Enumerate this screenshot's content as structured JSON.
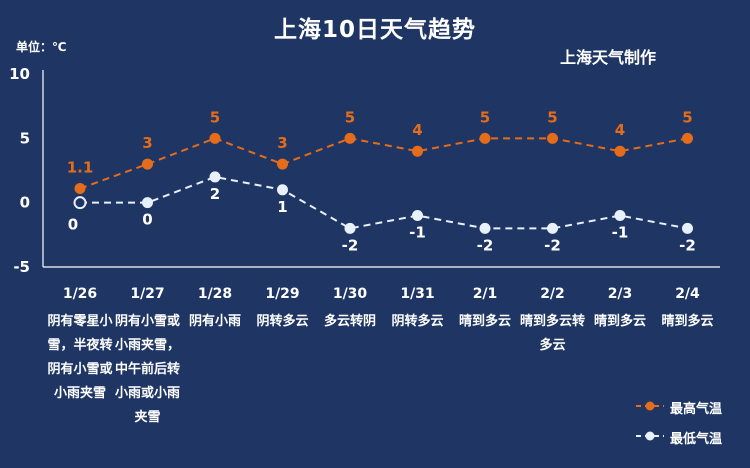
{
  "chart_data": {
    "type": "line",
    "title": "上海10日天气趋势",
    "subtitle": "上海天气制作",
    "unit_label": "单位：℃",
    "categories": [
      "1/26",
      "1/27",
      "1/28",
      "1/29",
      "1/30",
      "1/31",
      "2/1",
      "2/2",
      "2/3",
      "2/4"
    ],
    "conditions": [
      "阴有零星小雪，半夜转阴有小雪或小雨夹雪",
      "阴有小雪或小雨夹雪，中午前后转小雨或小雨夹雪",
      "阴有小雨",
      "阴转多云",
      "多云转阴",
      "阴转多云",
      "晴到多云",
      "晴到多云转多云",
      "晴到多云",
      "晴到多云"
    ],
    "series": [
      {
        "name": "最高气温",
        "values": [
          1.1,
          3,
          5,
          3,
          5,
          4,
          5,
          5,
          4,
          5
        ],
        "labels": [
          "1.1",
          "3",
          "5",
          "3",
          "5",
          "4",
          "5",
          "5",
          "4",
          "5"
        ],
        "color": "#e46c1a"
      },
      {
        "name": "最低气温",
        "values": [
          0,
          0,
          2,
          1,
          -2,
          -1,
          -2,
          -2,
          -1,
          -2
        ],
        "labels": [
          "0",
          "0",
          "2",
          "1",
          "-2",
          "-1",
          "-2",
          "-2",
          "-1",
          "-2"
        ],
        "color": "#e8f0fa"
      }
    ],
    "yticks": [
      "10",
      "5",
      "0",
      "-5"
    ],
    "ylim": [
      -5,
      10
    ],
    "grid": false,
    "legend": "bottom-right",
    "axis_color": "#ffffff",
    "background": "#1f3664"
  }
}
